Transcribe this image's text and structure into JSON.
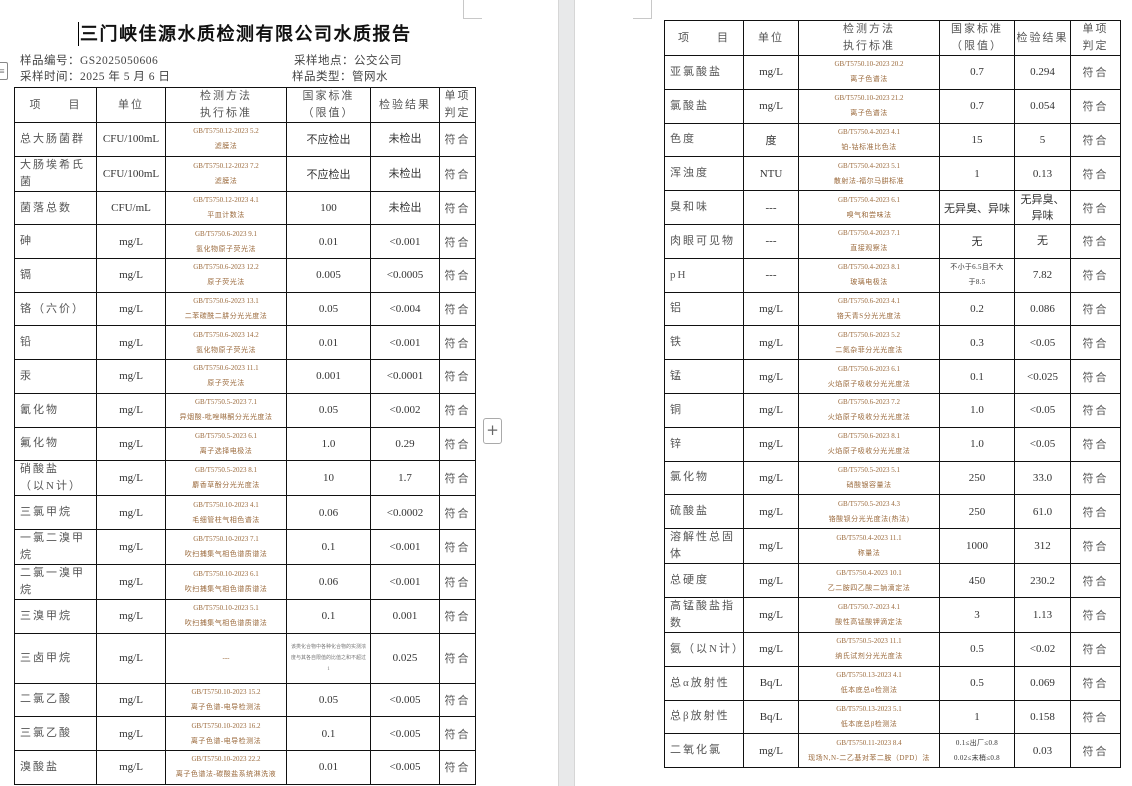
{
  "title": "三门峡佳源水质检测有限公司水质报告",
  "meta": {
    "sample_no": "样品编号：GS2025050606",
    "sample_location": "采样地点：公交公司",
    "sample_time": "采样时间：2025 年 5 月 6 日",
    "sample_type": "样品类型：管网水"
  },
  "header": {
    "item": "项　　目",
    "unit": "单位",
    "method": "检测方法\n执行标准",
    "standard": "国家标准\n（限值）",
    "result": "检验结果",
    "verdict": "单项\n判定"
  },
  "left_rows": [
    {
      "item": "总大肠菌群",
      "unit": "CFU/100mL",
      "method_code": "GB/T5750.12-2023 5.2",
      "method_name": "滤膜法",
      "standard": "不应检出",
      "result": "未检出",
      "verdict": "符合"
    },
    {
      "item": "大肠埃希氏菌",
      "unit": "CFU/100mL",
      "method_code": "GB/T5750.12-2023 7.2",
      "method_name": "滤膜法",
      "standard": "不应检出",
      "result": "未检出",
      "verdict": "符合"
    },
    {
      "item": "菌落总数",
      "unit": "CFU/mL",
      "method_code": "GB/T5750.12-2023 4.1",
      "method_name": "平皿计数法",
      "standard": "100",
      "result": "未检出",
      "verdict": "符合"
    },
    {
      "item": "砷",
      "unit": "mg/L",
      "method_code": "GB/T5750.6-2023 9.1",
      "method_name": "氢化物原子荧光法",
      "standard": "0.01",
      "result": "<0.001",
      "verdict": "符合"
    },
    {
      "item": "镉",
      "unit": "mg/L",
      "method_code": "GB/T5750.6-2023 12.2",
      "method_name": "原子荧光法",
      "standard": "0.005",
      "result": "<0.0005",
      "verdict": "符合"
    },
    {
      "item": "铬（六价）",
      "unit": "mg/L",
      "method_code": "GB/T5750.6-2023 13.1",
      "method_name": "二苯碳酰二肼分光光度法",
      "standard": "0.05",
      "result": "<0.004",
      "verdict": "符合"
    },
    {
      "item": "铅",
      "unit": "mg/L",
      "method_code": "GB/T5750.6-2023 14.2",
      "method_name": "氢化物原子荧光法",
      "standard": "0.01",
      "result": "<0.001",
      "verdict": "符合"
    },
    {
      "item": "汞",
      "unit": "mg/L",
      "method_code": "GB/T5750.6-2023 11.1",
      "method_name": "原子荧光法",
      "standard": "0.001",
      "result": "<0.0001",
      "verdict": "符合"
    },
    {
      "item": "氰化物",
      "unit": "mg/L",
      "method_code": "GB/T5750.5-2023 7.1",
      "method_name": "异烟酸-吡唑啉酮分光光度法",
      "standard": "0.05",
      "result": "<0.002",
      "verdict": "符合"
    },
    {
      "item": "氟化物",
      "unit": "mg/L",
      "method_code": "GB/T5750.5-2023 6.1",
      "method_name": "离子选择电极法",
      "standard": "1.0",
      "result": "0.29",
      "verdict": "符合"
    },
    {
      "item": "硝酸盐\n（以N计）",
      "unit": "mg/L",
      "method_code": "GB/T5750.5-2023 8.1",
      "method_name": "麝香草酚分光光度法",
      "standard": "10",
      "result": "1.7",
      "verdict": "符合"
    },
    {
      "item": "三氯甲烷",
      "unit": "mg/L",
      "method_code": "GB/T5750.10-2023 4.1",
      "method_name": "毛细管柱气相色谱法",
      "standard": "0.06",
      "result": "<0.0002",
      "verdict": "符合"
    },
    {
      "item": "一氯二溴甲烷",
      "unit": "mg/L",
      "method_code": "GB/T5750.10-2023 7.1",
      "method_name": "吹扫捕集气相色谱质谱法",
      "standard": "0.1",
      "result": "<0.001",
      "verdict": "符合"
    },
    {
      "item": "二氯一溴甲烷",
      "unit": "mg/L",
      "method_code": "GB/T5750.10-2023 6.1",
      "method_name": "吹扫捕集气相色谱质谱法",
      "standard": "0.06",
      "result": "<0.001",
      "verdict": "符合"
    },
    {
      "item": "三溴甲烷",
      "unit": "mg/L",
      "method_code": "GB/T5750.10-2023 5.1",
      "method_name": "吹扫捕集气相色谱质谱法",
      "standard": "0.1",
      "result": "0.001",
      "verdict": "符合"
    },
    {
      "item": "三卤甲烷",
      "unit": "mg/L",
      "method_code": "---",
      "method_name": "",
      "standard": "该类化合物中各种化合物的实测浓度与其各自限值的比值之和不超过1",
      "result": "0.025",
      "verdict": "符合"
    },
    {
      "item": "二氯乙酸",
      "unit": "mg/L",
      "method_code": "GB/T5750.10-2023 15.2",
      "method_name": "离子色谱-电导检测法",
      "standard": "0.05",
      "result": "<0.005",
      "verdict": "符合"
    },
    {
      "item": "三氯乙酸",
      "unit": "mg/L",
      "method_code": "GB/T5750.10-2023 16.2",
      "method_name": "离子色谱-电导检测法",
      "standard": "0.1",
      "result": "<0.005",
      "verdict": "符合"
    },
    {
      "item": "溴酸盐",
      "unit": "mg/L",
      "method_code": "GB/T5750.10-2023 22.2",
      "method_name": "离子色谱法-碳酸盐系统淋洗液",
      "standard": "0.01",
      "result": "<0.005",
      "verdict": "符合"
    }
  ],
  "right_rows": [
    {
      "item": "亚氯酸盐",
      "unit": "mg/L",
      "method_code": "GB/T5750.10-2023 20.2",
      "method_name": "离子色谱法",
      "standard": "0.7",
      "result": "0.294",
      "verdict": "符合"
    },
    {
      "item": "氯酸盐",
      "unit": "mg/L",
      "method_code": "GB/T5750.10-2023 21.2",
      "method_name": "离子色谱法",
      "standard": "0.7",
      "result": "0.054",
      "verdict": "符合"
    },
    {
      "item": "色度",
      "unit": "度",
      "method_code": "GB/T5750.4-2023 4.1",
      "method_name": "铂-钴标准比色法",
      "standard": "15",
      "result": "5",
      "verdict": "符合"
    },
    {
      "item": "浑浊度",
      "unit": "NTU",
      "method_code": "GB/T5750.4-2023 5.1",
      "method_name": "散射法-福尔马肼标准",
      "standard": "1",
      "result": "0.13",
      "verdict": "符合"
    },
    {
      "item": "臭和味",
      "unit": "---",
      "method_code": "GB/T5750.4-2023 6.1",
      "method_name": "嗅气和尝味法",
      "standard": "无异臭、异味",
      "result": "无异臭、\n异味",
      "verdict": "符合"
    },
    {
      "item": "肉眼可见物",
      "unit": "---",
      "method_code": "GB/T5750.4-2023 7.1",
      "method_name": "直接观察法",
      "standard": "无",
      "result": "无",
      "verdict": "符合"
    },
    {
      "item": "pH",
      "unit": "---",
      "method_code": "GB/T5750.4-2023 8.1",
      "method_name": "玻璃电极法",
      "standard": "不小于6.5且不大\n于8.5",
      "result": "7.82",
      "verdict": "符合"
    },
    {
      "item": "铝",
      "unit": "mg/L",
      "method_code": "GB/T5750.6-2023 4.1",
      "method_name": "铬天青S分光光度法",
      "standard": "0.2",
      "result": "0.086",
      "verdict": "符合"
    },
    {
      "item": "铁",
      "unit": "mg/L",
      "method_code": "GB/T5750.6-2023 5.2",
      "method_name": "二氮杂菲分光光度法",
      "standard": "0.3",
      "result": "<0.05",
      "verdict": "符合"
    },
    {
      "item": "锰",
      "unit": "mg/L",
      "method_code": "GB/T5750.6-2023 6.1",
      "method_name": "火焰原子吸收分光光度法",
      "standard": "0.1",
      "result": "<0.025",
      "verdict": "符合"
    },
    {
      "item": "铜",
      "unit": "mg/L",
      "method_code": "GB/T5750.6-2023 7.2",
      "method_name": "火焰原子吸收分光光度法",
      "standard": "1.0",
      "result": "<0.05",
      "verdict": "符合"
    },
    {
      "item": "锌",
      "unit": "mg/L",
      "method_code": "GB/T5750.6-2023 8.1",
      "method_name": "火焰原子吸收分光光度法",
      "standard": "1.0",
      "result": "<0.05",
      "verdict": "符合"
    },
    {
      "item": "氯化物",
      "unit": "mg/L",
      "method_code": "GB/T5750.5-2023 5.1",
      "method_name": "硝酸银容量法",
      "standard": "250",
      "result": "33.0",
      "verdict": "符合"
    },
    {
      "item": "硫酸盐",
      "unit": "mg/L",
      "method_code": "GB/T5750.5-2023 4.3",
      "method_name": "铬酸钡分光光度法(热法)",
      "standard": "250",
      "result": "61.0",
      "verdict": "符合"
    },
    {
      "item": "溶解性总固体",
      "unit": "mg/L",
      "method_code": "GB/T5750.4-2023 11.1",
      "method_name": "称量法",
      "standard": "1000",
      "result": "312",
      "verdict": "符合"
    },
    {
      "item": "总硬度",
      "unit": "mg/L",
      "method_code": "GB/T5750.4-2023 10.1",
      "method_name": "乙二胺四乙酸二钠滴定法",
      "standard": "450",
      "result": "230.2",
      "verdict": "符合"
    },
    {
      "item": "高锰酸盐指数",
      "unit": "mg/L",
      "method_code": "GB/T5750.7-2023 4.1",
      "method_name": "酸性高锰酸钾滴定法",
      "standard": "3",
      "result": "1.13",
      "verdict": "符合"
    },
    {
      "item": "氨（以N计）",
      "unit": "mg/L",
      "method_code": "GB/T5750.5-2023 11.1",
      "method_name": "纳氏试剂分光光度法",
      "standard": "0.5",
      "result": "<0.02",
      "verdict": "符合"
    },
    {
      "item": "总α放射性",
      "unit": "Bq/L",
      "method_code": "GB/T5750.13-2023 4.1",
      "method_name": "低本底总α检测法",
      "standard": "0.5",
      "result": "0.069",
      "verdict": "符合"
    },
    {
      "item": "总β放射性",
      "unit": "Bq/L",
      "method_code": "GB/T5750.13-2023 5.1",
      "method_name": "低本底总β检测法",
      "standard": "1",
      "result": "0.158",
      "verdict": "符合"
    },
    {
      "item": "二氧化氯",
      "unit": "mg/L",
      "method_code": "GB/T5750.11-2023 8.4",
      "method_name": "现场N,N-二乙基对苯二胺（DPD）法",
      "standard": "0.1≤出厂≤0.8\n0.02≤末梢≤0.8",
      "result": "0.03",
      "verdict": "符合"
    }
  ]
}
